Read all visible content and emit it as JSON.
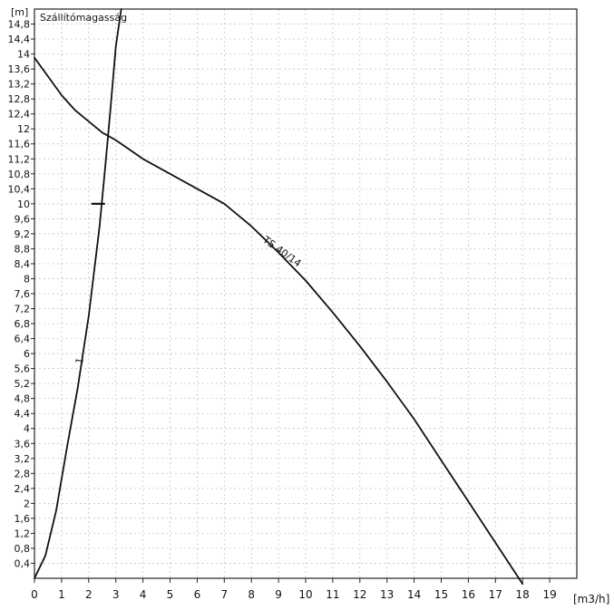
{
  "chart_data": {
    "type": "line",
    "title": "Szállítómagasság",
    "xlabel": "[m3/h]",
    "ylabel": "[m]",
    "xlim": [
      0,
      20
    ],
    "ylim": [
      0,
      15.2
    ],
    "grid": true,
    "x_ticks": [
      "0",
      "1",
      "2",
      "3",
      "4",
      "5",
      "6",
      "7",
      "8",
      "9",
      "10",
      "11",
      "12",
      "13",
      "14",
      "15",
      "16",
      "17",
      "18",
      "19"
    ],
    "y_ticks": [
      "0,4",
      "0,8",
      "1,2",
      "1,6",
      "2",
      "2,4",
      "2,8",
      "3,2",
      "3,6",
      "4",
      "4,4",
      "4,8",
      "5,2",
      "5,6",
      "6",
      "6,4",
      "6,8",
      "7,2",
      "7,6",
      "8",
      "8,4",
      "8,8",
      "9,2",
      "9,6",
      "10",
      "10,4",
      "10,8",
      "11,2",
      "11,6",
      "12",
      "12,4",
      "12,8",
      "13,2",
      "13,6",
      "14",
      "14,4",
      "14,8"
    ],
    "series": [
      {
        "name": "TS 40/14",
        "x": [
          0,
          0.5,
          1,
          1.5,
          2,
          2.5,
          3,
          4,
          5,
          6,
          7,
          8,
          9,
          10,
          11,
          12,
          13,
          14,
          15,
          16,
          17,
          18
        ],
        "y": [
          13.9,
          13.4,
          12.9,
          12.5,
          12.2,
          11.9,
          11.7,
          11.2,
          10.8,
          10.4,
          10.0,
          9.4,
          8.7,
          7.95,
          7.1,
          6.2,
          5.25,
          4.25,
          3.15,
          2.05,
          0.95,
          -0.15
        ]
      },
      {
        "name": "1",
        "x": [
          0,
          0.4,
          0.8,
          1.2,
          1.6,
          2.0,
          2.2,
          2.4,
          2.6,
          2.8,
          3.0,
          3.2
        ],
        "y": [
          0,
          0.6,
          1.8,
          3.5,
          5.1,
          7.0,
          8.2,
          9.4,
          10.9,
          12.5,
          14.2,
          15.2
        ]
      }
    ],
    "annotations": {
      "curve_label": "TS 40/14",
      "system_curve_label": "1"
    },
    "marker": {
      "x_from": 2.1,
      "x_to": 2.6,
      "y": 10.0
    }
  }
}
